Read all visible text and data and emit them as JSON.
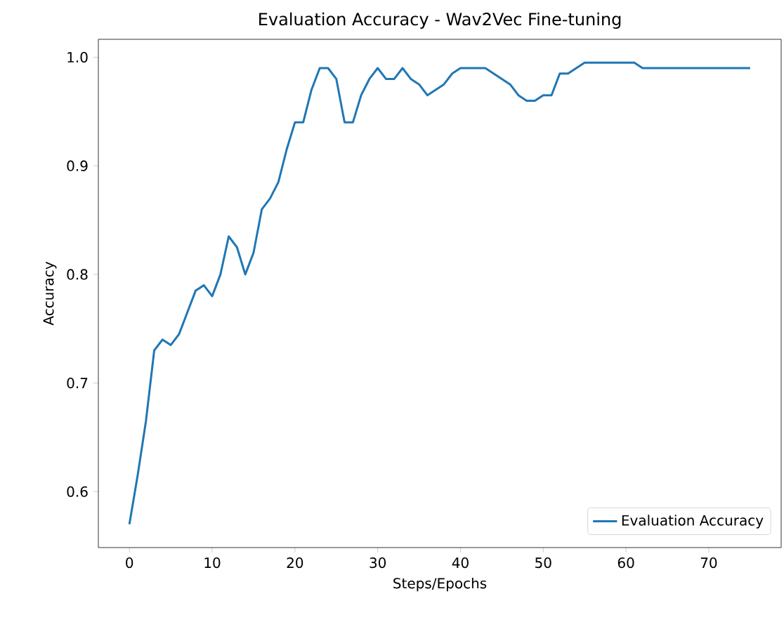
{
  "chart_data": {
    "type": "line",
    "title": "Evaluation Accuracy - Wav2Vec Fine-tuning",
    "xlabel": "Steps/Epochs",
    "ylabel": "Accuracy",
    "x": [
      0,
      1,
      2,
      3,
      4,
      5,
      6,
      7,
      8,
      9,
      10,
      11,
      12,
      13,
      14,
      15,
      16,
      17,
      18,
      19,
      20,
      21,
      22,
      23,
      24,
      25,
      26,
      27,
      28,
      29,
      30,
      31,
      32,
      33,
      34,
      35,
      36,
      37,
      38,
      39,
      40,
      41,
      42,
      43,
      44,
      45,
      46,
      47,
      48,
      49,
      50,
      51,
      52,
      53,
      54,
      55,
      56,
      57,
      58,
      59,
      60,
      61,
      62,
      63,
      64,
      65,
      66,
      67,
      68,
      69,
      70,
      71,
      72,
      73,
      74,
      75
    ],
    "series": [
      {
        "name": "Evaluation Accuracy",
        "color": "#1f77b4",
        "values": [
          0.57,
          0.615,
          0.665,
          0.73,
          0.74,
          0.735,
          0.745,
          0.765,
          0.785,
          0.79,
          0.78,
          0.8,
          0.835,
          0.825,
          0.8,
          0.82,
          0.86,
          0.87,
          0.885,
          0.915,
          0.94,
          0.94,
          0.97,
          0.99,
          0.99,
          0.98,
          0.94,
          0.94,
          0.965,
          0.98,
          0.99,
          0.98,
          0.98,
          0.99,
          0.98,
          0.975,
          0.965,
          0.97,
          0.975,
          0.985,
          0.99,
          0.99,
          0.99,
          0.99,
          0.985,
          0.98,
          0.975,
          0.965,
          0.96,
          0.96,
          0.965,
          0.965,
          0.985,
          0.985,
          0.99,
          0.995,
          0.995,
          0.995,
          0.995,
          0.995,
          0.995,
          0.995,
          0.99,
          0.99,
          0.99,
          0.99,
          0.99,
          0.99,
          0.99,
          0.99,
          0.99,
          0.99,
          0.99,
          0.99,
          0.99,
          0.99
        ]
      }
    ],
    "xlim": [
      -3.75,
      78.75
    ],
    "ylim": [
      0.5485,
      1.0165
    ],
    "xticks": [
      0,
      10,
      20,
      30,
      40,
      50,
      60,
      70
    ],
    "yticks": [
      0.6,
      0.7,
      0.8,
      0.9,
      {
        "value": 1.0,
        "label": "1.0"
      }
    ],
    "legend": "bottom right",
    "marker": "none",
    "line_style": "solid",
    "grid": false
  }
}
